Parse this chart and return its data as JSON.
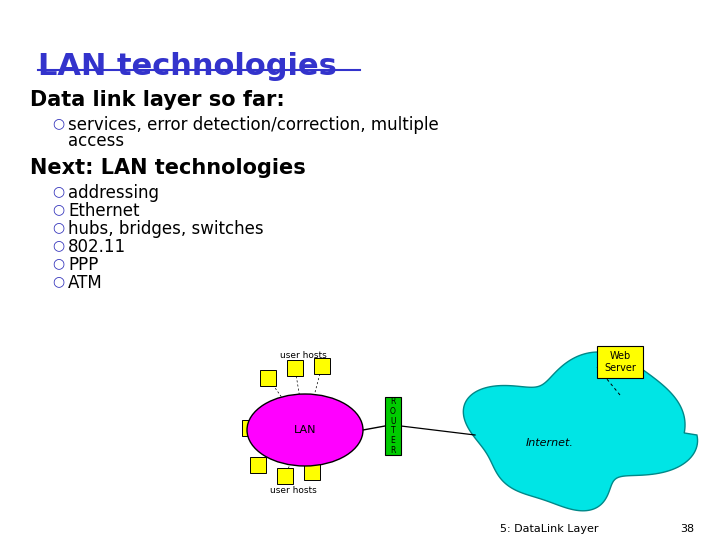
{
  "title": "LAN technologies",
  "title_color": "#3333cc",
  "background_color": "#ffffff",
  "section1": "Data link layer so far:",
  "bullet1a": "services, error detection/correction, multiple",
  "bullet1b": "access",
  "section2": "Next: LAN technologies",
  "bullets2": [
    "addressing",
    "Ethernet",
    "hubs, bridges, switches",
    "802.11",
    "PPP",
    "ATM"
  ],
  "footer": "5: DataLink Layer",
  "page": "38",
  "lan_color": "#ff00ff",
  "lan_label": "LAN",
  "internet_color": "#00e5e5",
  "internet_label": "Internet.",
  "router_color": "#00cc00",
  "router_label": "R\nO\nU\nT\nE\nR",
  "webserver_color": "#ffff00",
  "webserver_label": "Web\nServer",
  "host_color": "#ffff00",
  "user_hosts_label_top": "user hosts",
  "user_hosts_label_bot": "user hosts"
}
